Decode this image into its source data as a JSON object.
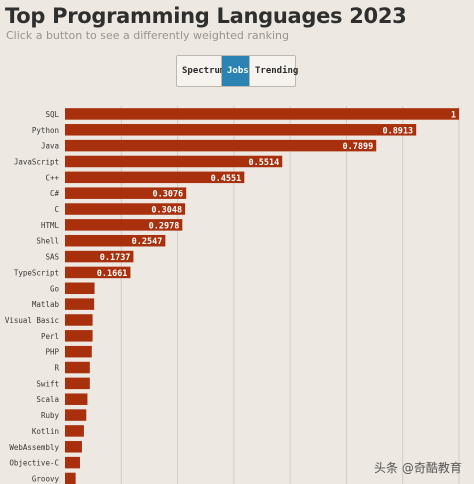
{
  "header": {
    "title": "Top Programming Languages 2023",
    "subtitle": "Click a button to see a differently weighted ranking"
  },
  "buttons": [
    {
      "label": "Spectrum",
      "active": false
    },
    {
      "label": "Jobs",
      "active": true
    },
    {
      "label": "Trending",
      "active": false
    }
  ],
  "colors": {
    "bar": "#a9300c",
    "button_active": "#2b83b3",
    "background": "#ede8e1",
    "grid": "#d2ccc5"
  },
  "watermark": "头条 @奇酷教育",
  "chart_data": {
    "type": "bar",
    "orientation": "horizontal",
    "grid": true,
    "xlim": [
      0,
      1
    ],
    "categories": [
      "SQL",
      "Python",
      "Java",
      "JavaScript",
      "C++",
      "C#",
      "C",
      "HTML",
      "Shell",
      "SAS",
      "TypeScript",
      "Go",
      "Matlab",
      "Visual Basic",
      "Perl",
      "PHP",
      "R",
      "Swift",
      "Scala",
      "Ruby",
      "Kotlin",
      "WebAssembly",
      "Objective-C",
      "Groovy"
    ],
    "values": [
      1,
      0.8913,
      0.7899,
      0.5514,
      0.4551,
      0.3076,
      0.3048,
      0.2978,
      0.2547,
      0.1737,
      0.1661,
      0.075,
      0.074,
      0.07,
      0.07,
      0.068,
      0.063,
      0.063,
      0.057,
      0.054,
      0.048,
      0.043,
      0.038,
      0.027
    ],
    "value_labels": [
      "1",
      "0.8913",
      "0.7899",
      "0.5514",
      "0.4551",
      "0.3076",
      "0.3048",
      "0.2978",
      "0.2547",
      "0.1737",
      "0.1661",
      "",
      "",
      "",
      "",
      "",
      "",
      "",
      "",
      "",
      "",
      "",
      "",
      ""
    ]
  }
}
